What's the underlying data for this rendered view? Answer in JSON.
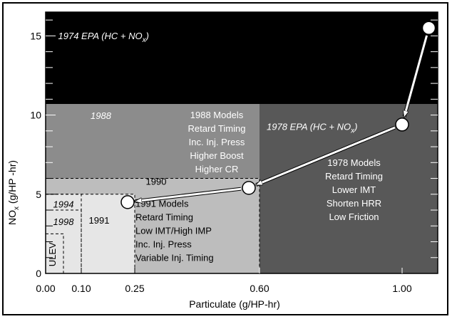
{
  "chart_data": {
    "type": "area",
    "xlabel": "Particulate (g/HP-hr)",
    "ylabel_main": "NO",
    "ylabel_sub": "x",
    "ylabel_tail": " (g/HP -hr)",
    "xlim": [
      0,
      1.1
    ],
    "ylim": [
      0,
      16.5
    ],
    "x_ticks": [
      {
        "v": 0.0,
        "label": "0.00"
      },
      {
        "v": 0.1,
        "label": "0.10"
      },
      {
        "v": 0.25,
        "label": "0.25"
      },
      {
        "v": 0.6,
        "label": "0.60"
      },
      {
        "v": 1.0,
        "label": "1.00"
      }
    ],
    "y_ticks": [
      {
        "v": 0,
        "label": "0"
      },
      {
        "v": 5,
        "label": "5"
      },
      {
        "v": 10,
        "label": "10"
      },
      {
        "v": 15,
        "label": "15"
      }
    ],
    "y_minor_step": 1,
    "regions": [
      {
        "name": "1974 EPA",
        "x": [
          0,
          1.1
        ],
        "y": [
          0,
          16.5
        ],
        "fill": "#000000",
        "border": "none"
      },
      {
        "name": "1978 EPA",
        "x": [
          0,
          1.1
        ],
        "y": [
          0,
          10.7
        ],
        "fill": "#585858",
        "border": "none"
      },
      {
        "name": "1988",
        "x": [
          0,
          0.6
        ],
        "y": [
          0,
          10.7
        ],
        "fill": "#8c8c8c",
        "border": "none"
      },
      {
        "name": "1990",
        "x": [
          0,
          0.6
        ],
        "y": [
          0,
          6.0
        ],
        "fill": "#bdbdbd",
        "border": "dashed"
      },
      {
        "name": "1991",
        "x": [
          0,
          0.25
        ],
        "y": [
          0,
          5.0
        ],
        "fill": "#e6e6e6",
        "border": "dashed"
      },
      {
        "name": "1994",
        "x": [
          0,
          0.1
        ],
        "y": [
          0,
          5.0
        ],
        "fill": "none",
        "border": "dashed"
      },
      {
        "name": "1998",
        "x": [
          0,
          0.1
        ],
        "y": [
          0,
          4.0
        ],
        "fill": "none",
        "border": "dashed"
      },
      {
        "name": "ULEV",
        "x": [
          0,
          0.05
        ],
        "y": [
          0,
          2.5
        ],
        "fill": "none",
        "border": "dashed"
      }
    ],
    "points": [
      {
        "x": 1.075,
        "y": 15.5
      },
      {
        "x": 1.0,
        "y": 9.4
      },
      {
        "x": 0.57,
        "y": 5.4
      },
      {
        "x": 0.23,
        "y": 4.5
      }
    ],
    "arrows": [
      {
        "from": [
          1.075,
          15.5
        ],
        "to": [
          1.0,
          9.4
        ]
      },
      {
        "from": [
          1.0,
          9.4
        ],
        "to": [
          0.57,
          5.4
        ]
      },
      {
        "from": [
          0.57,
          5.4
        ],
        "to": [
          0.23,
          4.5
        ]
      }
    ],
    "labels": [
      {
        "text": "1974 EPA (HC + NO",
        "sub": "x",
        "after": ")",
        "x": 0.035,
        "y": 14.8,
        "anchor": "start",
        "color": "#ffffff",
        "italic": true
      },
      {
        "text": "1988",
        "x": 0.155,
        "y": 9.75,
        "anchor": "middle",
        "color": "#ffffff",
        "italic": true
      },
      {
        "text": "1978 EPA (HC + NO",
        "sub": "x",
        "after": ")",
        "x": 0.62,
        "y": 9.05,
        "anchor": "start",
        "color": "#ffffff",
        "italic": true
      },
      {
        "text": "1990",
        "x": 0.31,
        "y": 5.6,
        "anchor": "middle",
        "color": "#000000",
        "italic": false
      },
      {
        "text": "1994",
        "x": 0.05,
        "y": 4.15,
        "anchor": "middle",
        "color": "#000000",
        "italic": true
      },
      {
        "text": "1998",
        "x": 0.05,
        "y": 3.05,
        "anchor": "middle",
        "color": "#000000",
        "italic": true
      },
      {
        "text": "1991",
        "x": 0.15,
        "y": 3.15,
        "anchor": "middle",
        "color": "#000000",
        "italic": false
      }
    ],
    "text_blocks": [
      {
        "lines": [
          "1988 Models",
          "Retard Timing",
          "Inc. Inj. Press",
          "Higher Boost",
          "Higher CR"
        ],
        "x": 0.48,
        "y": 9.8,
        "color": "#ffffff"
      },
      {
        "lines": [
          "1978 Models",
          "Retard Timing",
          "Lower IMT",
          "Shorten HRR",
          "Low Friction"
        ],
        "x": 0.865,
        "y": 6.8,
        "color": "#ffffff"
      },
      {
        "lines": [
          "1991 Models",
          "Retard Timing",
          "Low IMT/High IMP",
          "Inc. Inj. Press",
          "Variable Inj. Timing"
        ],
        "x": 0.25,
        "y": 4.2,
        "color": "#000000",
        "anchor": "start",
        "x_offset": 0.002
      }
    ],
    "ulev_label": "ULEV"
  }
}
